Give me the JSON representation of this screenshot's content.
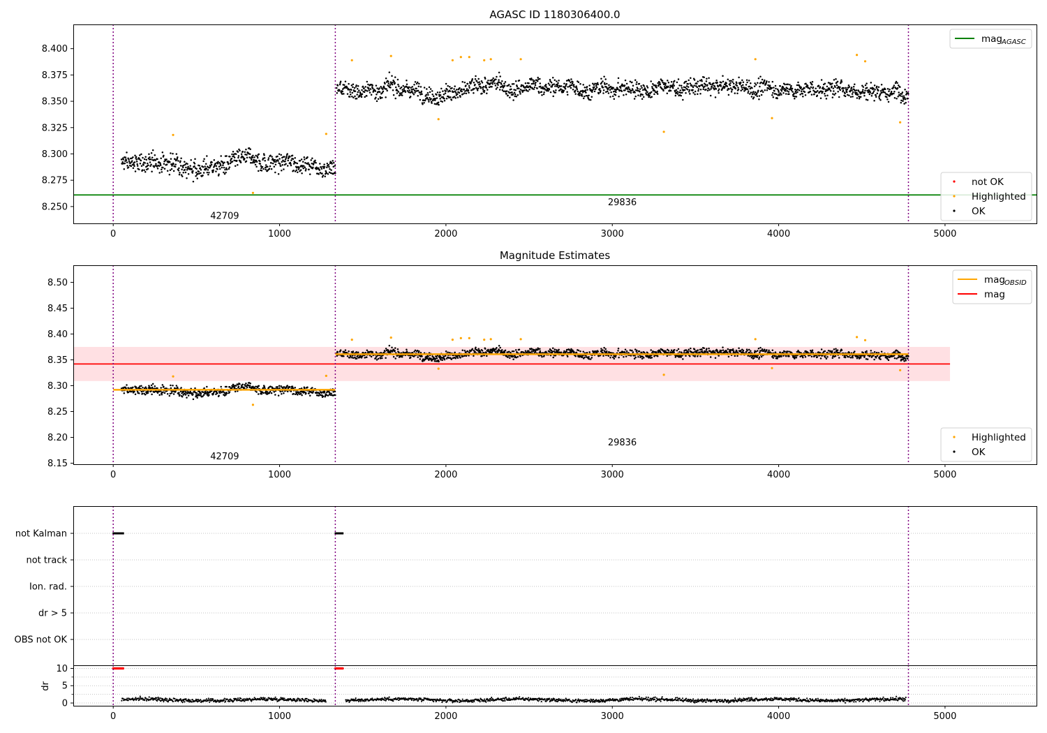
{
  "chart_data": [
    {
      "name": "top",
      "type": "scatter",
      "title": "AGASC ID 1180306400.0",
      "xlim": [
        -240,
        5550
      ],
      "ylim": [
        8.234,
        8.423
      ],
      "xticks": [
        0,
        1000,
        2000,
        3000,
        4000,
        5000
      ],
      "yticks": [
        8.25,
        8.275,
        8.3,
        8.325,
        8.35,
        8.375,
        8.4
      ],
      "ytick_labels": [
        "8.250",
        "8.275",
        "8.300",
        "8.325",
        "8.350",
        "8.375",
        "8.400"
      ],
      "observation_boundaries": [
        0,
        1335,
        4780
      ],
      "observations": [
        {
          "obsid": "42709",
          "x_start": 0,
          "x_end": 1335,
          "label_x": 670,
          "label_y": 8.241,
          "mean": 8.291,
          "scatter": 0.01
        },
        {
          "obsid": "29836",
          "x_start": 1335,
          "x_end": 4780,
          "label_x": 3060,
          "label_y": 8.254,
          "mean": 8.362,
          "scatter": 0.009
        }
      ],
      "mag_agasc": 8.261,
      "highlighted_points": [
        [
          360,
          8.318
        ],
        [
          840,
          8.263
        ],
        [
          1280,
          8.319
        ],
        [
          1435,
          8.389
        ],
        [
          1670,
          8.393
        ],
        [
          1955,
          8.333
        ],
        [
          2040,
          8.389
        ],
        [
          2090,
          8.392
        ],
        [
          2140,
          8.392
        ],
        [
          2230,
          8.389
        ],
        [
          2270,
          8.39
        ],
        [
          2450,
          8.39
        ],
        [
          3310,
          8.321
        ],
        [
          3860,
          8.39
        ],
        [
          3960,
          8.334
        ],
        [
          4470,
          8.394
        ],
        [
          4520,
          8.388
        ],
        [
          4730,
          8.33
        ]
      ],
      "legends": [
        {
          "placement": "upper-right",
          "entries": [
            {
              "label": "mag",
              "sub": "AGASC",
              "color": "#008000",
              "kind": "line"
            }
          ]
        },
        {
          "placement": "lower-right",
          "entries": [
            {
              "label": "not OK",
              "color": "#ff0000",
              "kind": "dot"
            },
            {
              "label": "Highlighted",
              "color": "#ffa500",
              "kind": "dot"
            },
            {
              "label": "OK",
              "color": "#000000",
              "kind": "dot"
            }
          ]
        }
      ]
    },
    {
      "name": "middle",
      "type": "scatter",
      "title": "Magnitude Estimates",
      "xlim": [
        -240,
        5550
      ],
      "ylim": [
        8.148,
        8.533
      ],
      "xticks": [
        0,
        1000,
        2000,
        3000,
        4000,
        5000
      ],
      "yticks": [
        8.15,
        8.2,
        8.25,
        8.3,
        8.35,
        8.4,
        8.45,
        8.5
      ],
      "ytick_labels": [
        "8.15",
        "8.20",
        "8.25",
        "8.30",
        "8.35",
        "8.40",
        "8.45",
        "8.50"
      ],
      "observation_boundaries": [
        0,
        1335,
        4780
      ],
      "observations": [
        {
          "obsid": "42709",
          "x_start": 0,
          "x_end": 1335,
          "label_x": 670,
          "label_y": 8.163,
          "mean": 8.291,
          "scatter": 0.01,
          "mag_obsid": 8.292
        },
        {
          "obsid": "29836",
          "x_start": 1335,
          "x_end": 4780,
          "label_x": 3060,
          "label_y": 8.19,
          "mean": 8.362,
          "scatter": 0.009,
          "mag_obsid": 8.361
        }
      ],
      "mag": 8.342,
      "mag_band": [
        8.309,
        8.375
      ],
      "mag_band_x": [
        -240,
        5030
      ],
      "highlighted_points": [
        [
          360,
          8.318
        ],
        [
          840,
          8.263
        ],
        [
          1280,
          8.319
        ],
        [
          1435,
          8.389
        ],
        [
          1670,
          8.393
        ],
        [
          1955,
          8.333
        ],
        [
          2040,
          8.389
        ],
        [
          2090,
          8.392
        ],
        [
          2140,
          8.392
        ],
        [
          2230,
          8.389
        ],
        [
          2270,
          8.39
        ],
        [
          2450,
          8.39
        ],
        [
          3310,
          8.321
        ],
        [
          3860,
          8.39
        ],
        [
          3960,
          8.334
        ],
        [
          4470,
          8.394
        ],
        [
          4520,
          8.388
        ],
        [
          4730,
          8.33
        ]
      ],
      "legends": [
        {
          "placement": "upper-right",
          "entries": [
            {
              "label": "mag",
              "sub": "OBSID",
              "color": "#ffa500",
              "kind": "line"
            },
            {
              "label": "mag",
              "color": "#ff0000",
              "kind": "line"
            }
          ]
        },
        {
          "placement": "lower-right",
          "entries": [
            {
              "label": "Highlighted",
              "color": "#ffa500",
              "kind": "dot"
            },
            {
              "label": "OK",
              "color": "#000000",
              "kind": "dot"
            }
          ]
        }
      ]
    },
    {
      "name": "flags",
      "type": "scatter",
      "xlim": [
        -240,
        5550
      ],
      "categories": [
        "not Kalman",
        "not track",
        "Ion. rad.",
        "dr > 5",
        "OBS not OK"
      ],
      "observation_boundaries": [
        0,
        1335,
        4780
      ],
      "flagged": [
        {
          "category": "not Kalman",
          "x_ranges": [
            [
              0,
              60
            ],
            [
              1335,
              1380
            ]
          ]
        }
      ]
    },
    {
      "name": "dr",
      "type": "scatter",
      "xlim": [
        -240,
        5550
      ],
      "ylim": [
        -0.8,
        10.9
      ],
      "ylabel": "dr",
      "xticks": [
        0,
        1000,
        2000,
        3000,
        4000,
        5000
      ],
      "yticks": [
        0,
        5,
        10
      ],
      "ytick_labels": [
        "0",
        "5",
        "10"
      ],
      "observation_boundaries": [
        0,
        1335,
        4780
      ],
      "dr_typical": 0.9,
      "dr_outliers": [
        {
          "x_range": [
            0,
            60
          ],
          "value": 10
        },
        {
          "x_range": [
            1335,
            1380
          ],
          "value": 10
        }
      ],
      "gaps": [
        [
          -240,
          50
        ],
        [
          1280,
          1395
        ],
        [
          4765,
          5550
        ]
      ]
    }
  ],
  "colors": {
    "ok": "#000000",
    "highlighted": "#ffa500",
    "not_ok": "#ff0000",
    "agasc_line": "#008000",
    "mag_line": "#ff0000",
    "mag_band": "#ffe0e3",
    "obs_boundary": "#800080",
    "flag_grid": "#b0b0b0"
  }
}
